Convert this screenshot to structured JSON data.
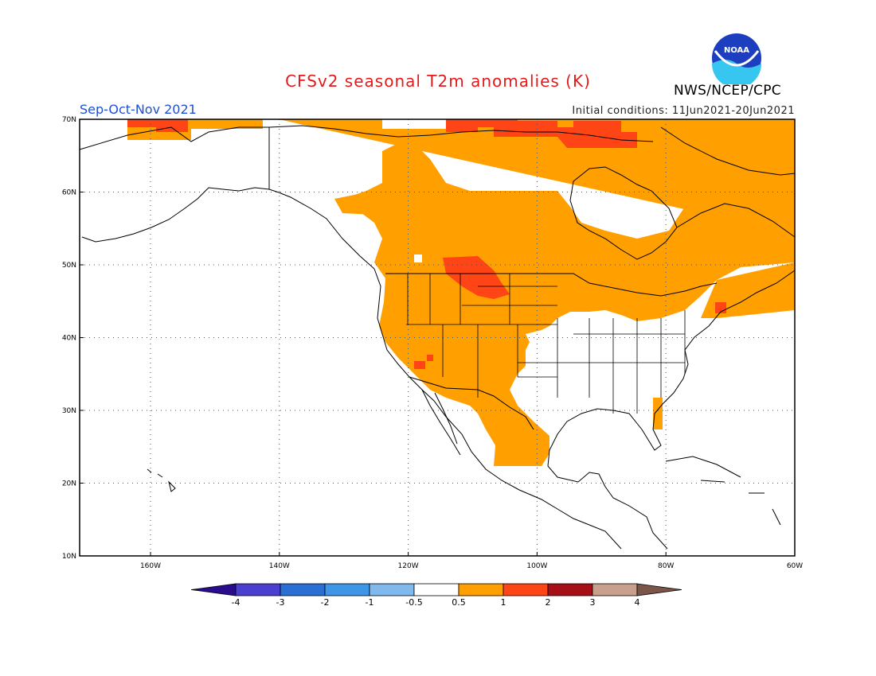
{
  "header": {
    "title": "CFSv2 seasonal T2m anomalies (K)",
    "season": "Sep-Oct-Nov 2021",
    "initial_conditions": "Initial conditions: 11Jun2021-20Jun2021",
    "agency": "NWS/NCEP/CPC",
    "logo_text": "NOAA"
  },
  "map": {
    "lon_labels": [
      "160W",
      "140W",
      "120W",
      "100W",
      "80W",
      "60W"
    ],
    "lat_labels": [
      "70N",
      "60N",
      "50N",
      "40N",
      "30N",
      "20N",
      "10N"
    ],
    "lon_range": [
      -171,
      -60
    ],
    "lat_range": [
      10,
      70
    ],
    "grid": "dotted"
  },
  "colorbar": {
    "ticks": [
      "-4",
      "-3",
      "-2",
      "-1",
      "-0.5",
      "0.5",
      "1",
      "2",
      "3",
      "4"
    ],
    "colors": [
      "#2a0d8f",
      "#4b3fcf",
      "#2c6fd4",
      "#3f95e6",
      "#7fb9ee",
      "#ffffff",
      "#ff9f00",
      "#ff4416",
      "#a50f15",
      "#c9a08e",
      "#7b5548"
    ]
  },
  "colors": {
    "anomaly_0_5_1": "#ff9f00",
    "anomaly_1_2": "#ff4416",
    "title": "#e31a1c",
    "season": "#1f4fd6"
  }
}
